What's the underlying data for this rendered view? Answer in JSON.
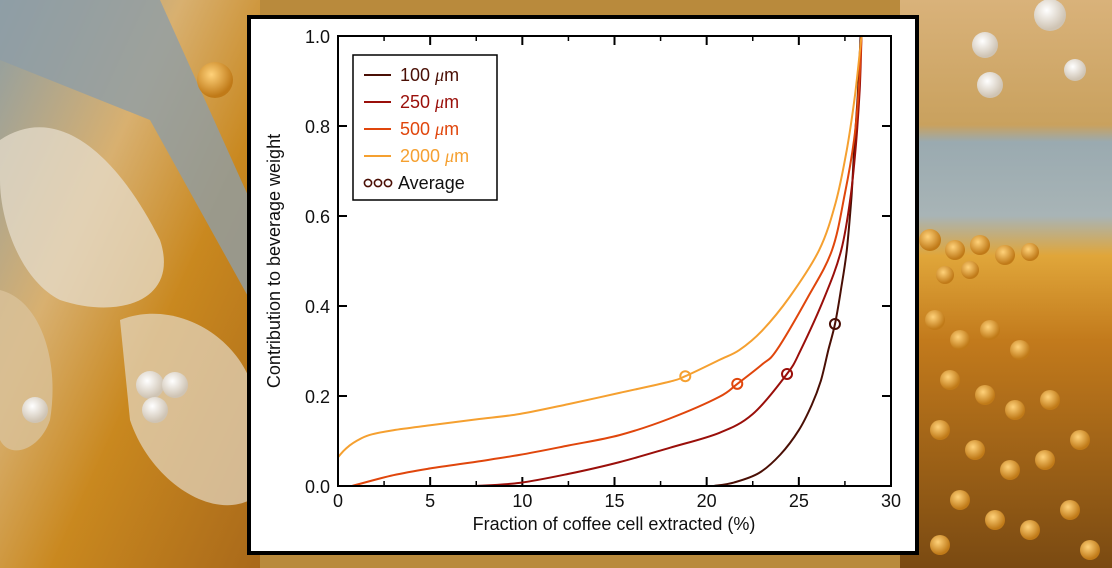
{
  "background": {
    "description": "Scanning electron micrograph of a roasted coffee bean cell structure (false-colored amber, blue-grey and white)",
    "colors": [
      "#d9932a",
      "#8d9ea4",
      "#e8dcc6",
      "#7a4a12",
      "#f0b54a"
    ]
  },
  "chart_data": {
    "type": "line",
    "title": "",
    "xlabel": "Fraction of coffee cell extracted (%)",
    "ylabel": "Contribution to beverage weight",
    "xlim": [
      0,
      30
    ],
    "ylim": [
      0,
      1.0
    ],
    "x_ticks": [
      0,
      5,
      10,
      15,
      20,
      25,
      30
    ],
    "x_tick_labels": [
      "0",
      "5",
      "10",
      "15",
      "20",
      "25",
      "30"
    ],
    "x_minor_ticks": [
      2.5,
      7.5,
      12.5,
      17.5,
      22.5,
      27.5
    ],
    "y_ticks": [
      0.0,
      0.2,
      0.4,
      0.6,
      0.8,
      1.0
    ],
    "y_tick_labels": [
      "0.0",
      "0.2",
      "0.4",
      "0.6",
      "0.8",
      "1.0"
    ],
    "grid": false,
    "legend_position": "top-left",
    "series": [
      {
        "name": "100 μm",
        "label_num": "100",
        "label_unit": "μm",
        "color": "#4a0f05",
        "points": [
          [
            20.35,
            0.0
          ],
          [
            21.5,
            0.008
          ],
          [
            22.85,
            0.029
          ],
          [
            24.0,
            0.07
          ],
          [
            25.0,
            0.124
          ],
          [
            25.7,
            0.18
          ],
          [
            26.2,
            0.235
          ],
          [
            26.6,
            0.302
          ],
          [
            26.96,
            0.36
          ],
          [
            27.3,
            0.44
          ],
          [
            27.6,
            0.524
          ],
          [
            27.85,
            0.64
          ],
          [
            28.0,
            0.747
          ],
          [
            28.2,
            0.87
          ],
          [
            28.35,
            1.0
          ]
        ],
        "average": [
          26.96,
          0.36
        ]
      },
      {
        "name": "250 μm",
        "label_num": "250",
        "label_unit": "μm",
        "color": "#9a0f0a",
        "points": [
          [
            7.4,
            0.0
          ],
          [
            9.85,
            0.007
          ],
          [
            12.5,
            0.027
          ],
          [
            15.27,
            0.053
          ],
          [
            18.0,
            0.085
          ],
          [
            20.68,
            0.118
          ],
          [
            22.5,
            0.16
          ],
          [
            24.36,
            0.249
          ],
          [
            25.1,
            0.302
          ],
          [
            26.4,
            0.42
          ],
          [
            27.3,
            0.524
          ],
          [
            27.8,
            0.64
          ],
          [
            28.1,
            0.76
          ],
          [
            28.3,
            0.88
          ],
          [
            28.4,
            1.0
          ]
        ],
        "average": [
          24.36,
          0.249
        ]
      },
      {
        "name": "500 μm",
        "label_num": "500",
        "label_unit": "μm",
        "color": "#e0460c",
        "points": [
          [
            0.76,
            0.0
          ],
          [
            3.0,
            0.024
          ],
          [
            5.0,
            0.039
          ],
          [
            7.5,
            0.054
          ],
          [
            9.85,
            0.069
          ],
          [
            12.5,
            0.09
          ],
          [
            15.27,
            0.113
          ],
          [
            18.0,
            0.15
          ],
          [
            20.68,
            0.198
          ],
          [
            21.66,
            0.227
          ],
          [
            23.0,
            0.27
          ],
          [
            23.8,
            0.302
          ],
          [
            25.5,
            0.42
          ],
          [
            26.8,
            0.524
          ],
          [
            27.5,
            0.65
          ],
          [
            28.0,
            0.77
          ],
          [
            28.25,
            0.88
          ],
          [
            28.4,
            1.0
          ]
        ],
        "average": [
          21.66,
          0.227
        ]
      },
      {
        "name": "2000 μm",
        "label_num": "2000",
        "label_unit": "μm",
        "color": "#f5a030",
        "points": [
          [
            0.0,
            0.064
          ],
          [
            0.3,
            0.078
          ],
          [
            0.6,
            0.089
          ],
          [
            1.0,
            0.1
          ],
          [
            1.7,
            0.113
          ],
          [
            3.0,
            0.124
          ],
          [
            5.0,
            0.135
          ],
          [
            7.5,
            0.148
          ],
          [
            9.85,
            0.16
          ],
          [
            12.5,
            0.182
          ],
          [
            15.27,
            0.207
          ],
          [
            18.0,
            0.232
          ],
          [
            18.84,
            0.244
          ],
          [
            20.68,
            0.28
          ],
          [
            21.77,
            0.302
          ],
          [
            23.0,
            0.345
          ],
          [
            24.5,
            0.42
          ],
          [
            26.1,
            0.524
          ],
          [
            27.0,
            0.63
          ],
          [
            27.6,
            0.747
          ],
          [
            28.05,
            0.87
          ],
          [
            28.4,
            1.0
          ]
        ],
        "average": [
          18.84,
          0.244
        ]
      }
    ],
    "average_legend": {
      "label": "Average",
      "marker": "ooo",
      "color": "#4a0f05"
    }
  }
}
